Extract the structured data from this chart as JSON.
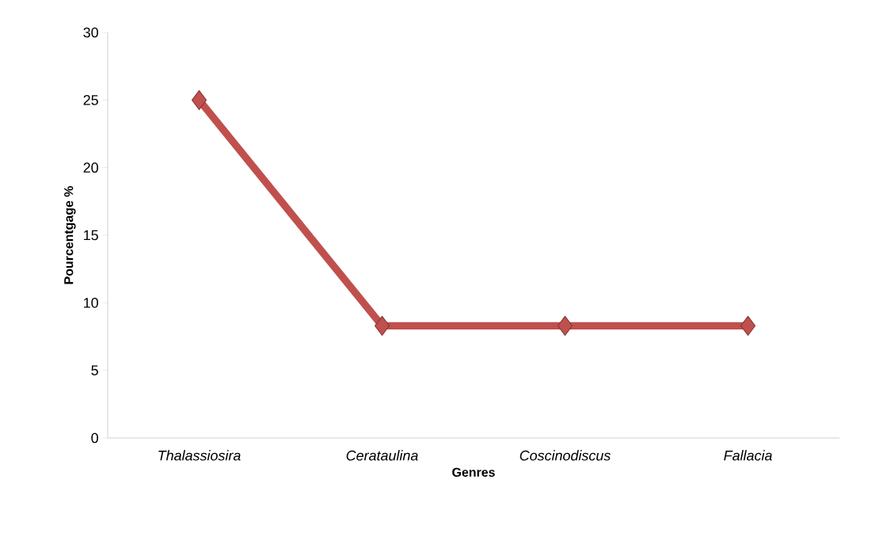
{
  "chart_data": {
    "type": "line",
    "xlabel": "Genres",
    "ylabel": "Pourcentgage %",
    "categories": [
      "Thalassiosira",
      "Cerataulina",
      "Coscinodiscus",
      "Fallacia"
    ],
    "values": [
      25,
      8.3,
      8.3,
      8.3
    ],
    "color": "#c0504d",
    "marker": "diamond",
    "ylim": [
      0,
      30
    ],
    "yticks": [
      0,
      5,
      10,
      15,
      20,
      25,
      30
    ]
  }
}
